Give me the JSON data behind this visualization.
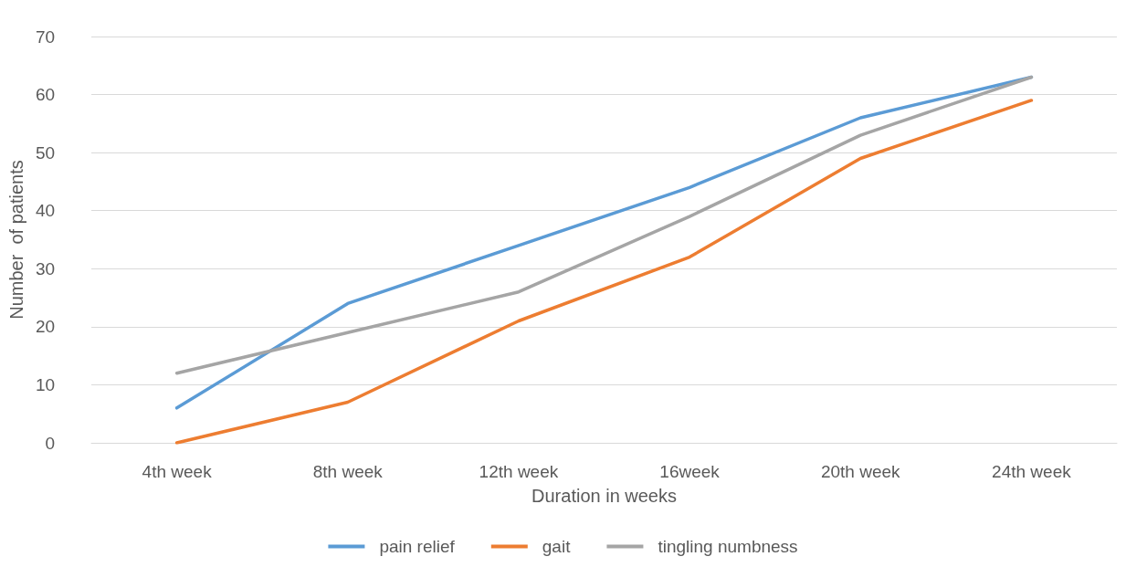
{
  "chart_data": {
    "type": "line",
    "xlabel": "Duration in weeks",
    "ylabel": "Number  of patients",
    "categories": [
      "4th week",
      "8th week",
      "12th week",
      "16week",
      "20th week",
      "24th week"
    ],
    "series": [
      {
        "name": "pain relief",
        "color": "#5b9bd5",
        "values": [
          6,
          24,
          34,
          44,
          56,
          63
        ]
      },
      {
        "name": "gait",
        "color": "#ed7d31",
        "values": [
          0,
          7,
          21,
          32,
          49,
          59
        ]
      },
      {
        "name": "tingling numbness",
        "color": "#a5a5a5",
        "values": [
          12,
          19,
          26,
          39,
          53,
          63
        ]
      }
    ],
    "ylim": [
      0,
      70
    ],
    "yticks": [
      0,
      10,
      20,
      30,
      40,
      50,
      60,
      70
    ],
    "grid": "y",
    "legend": "bottom",
    "marker": "none",
    "line_style": "solid"
  }
}
